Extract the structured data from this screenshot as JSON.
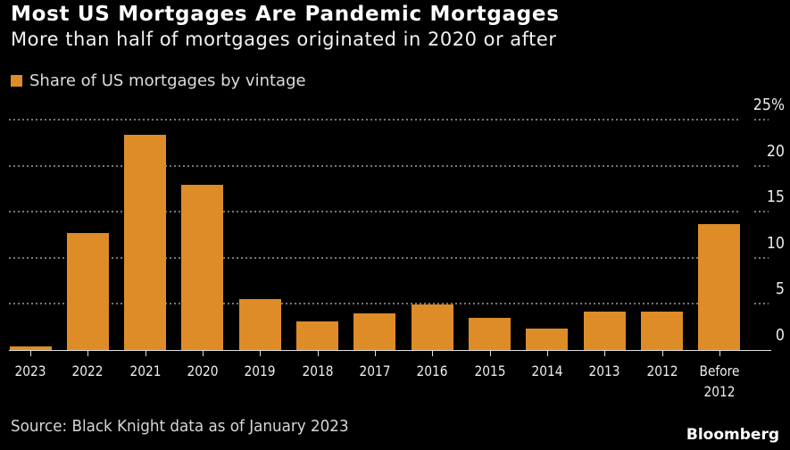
{
  "header": {
    "title": "Most US Mortgages Are Pandemic Mortgages",
    "subtitle": "More than half of mortgages originated in 2020 or after"
  },
  "legend": {
    "label": "Share of US mortgages by vintage",
    "swatch_color": "#DE8C28"
  },
  "chart_data": {
    "type": "bar",
    "categories": [
      "2023",
      "2022",
      "2021",
      "2020",
      "2019",
      "2018",
      "2017",
      "2016",
      "2015",
      "2014",
      "2013",
      "2012",
      "Before 2012"
    ],
    "values": [
      0.4,
      12.7,
      23.4,
      17.9,
      5.5,
      3.1,
      4.0,
      4.9,
      3.5,
      2.3,
      4.2,
      4.2,
      13.7
    ],
    "title": "Most US Mortgages Are Pandemic Mortgages",
    "xlabel": "",
    "ylabel": "Share of US mortgages by vintage (%)",
    "ylim": [
      0,
      25
    ],
    "yticks": [
      0,
      5,
      10,
      15,
      20,
      25
    ],
    "ytick_labels": [
      "0",
      "5",
      "10",
      "15",
      "20",
      "25%"
    ],
    "grid": "horizontal-dotted",
    "bar_color": "#DE8C28",
    "legend_position": "top-left"
  },
  "footer": {
    "source": "Source: Black Knight data as of January 2023",
    "brand": "Bloomberg"
  }
}
